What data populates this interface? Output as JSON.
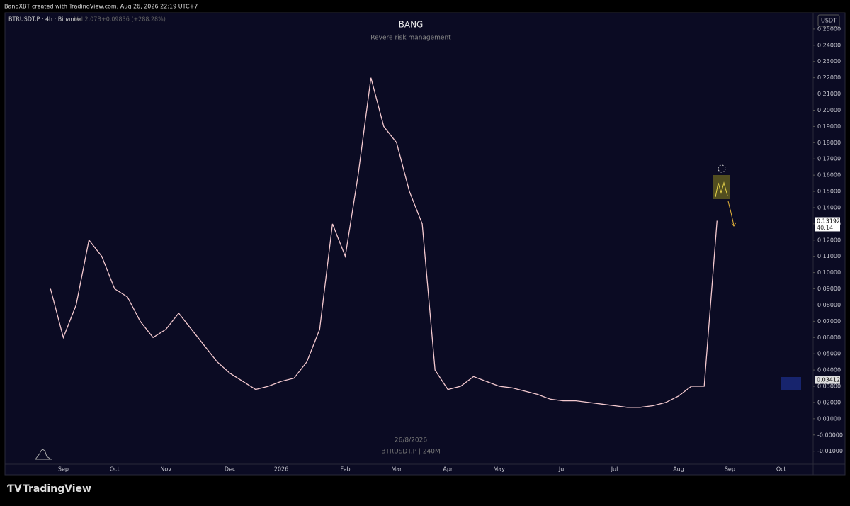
{
  "attribution": "BangXBT created with TradingView.com, Aug 26, 2026 22:19 UTC+7",
  "brand": "TradingView",
  "chart_data": {
    "type": "line",
    "title": "BANG",
    "subtitle": "Revere risk management",
    "symbol": "BTRUSDT.P · 4h · Binance",
    "volume": "Vol 2.07B",
    "change": "+0.09836 (+288.28%)",
    "currency": "USDT",
    "watermark_date": "26/8/2026",
    "watermark_symbol": "BTRUSDT.P | 240M",
    "countdown": "40:14",
    "price_labels": [
      0.13192,
      0.03412
    ],
    "color": "#f4c9cf",
    "categories": [
      null,
      null,
      null,
      null,
      "Sep",
      null,
      null,
      null,
      "Oct",
      null,
      null,
      null,
      "Nov",
      null,
      null,
      null,
      null,
      "Dec",
      null,
      null,
      null,
      "2026",
      null,
      null,
      null,
      null,
      "Feb",
      null,
      null,
      null,
      "Mar",
      null,
      null,
      null,
      "Apr",
      null,
      null,
      null,
      "May",
      null,
      null,
      null,
      null,
      "Jun",
      null,
      null,
      null,
      "Jul",
      null,
      null,
      null,
      null,
      "Aug",
      null,
      null,
      null,
      "Sep",
      null,
      null,
      null,
      "Oct",
      null,
      null
    ],
    "values": [
      null,
      null,
      null,
      0.09,
      0.06,
      0.08,
      0.12,
      0.11,
      0.09,
      0.085,
      0.07,
      0.06,
      0.065,
      0.075,
      0.065,
      0.055,
      0.045,
      0.038,
      0.033,
      0.028,
      0.03,
      0.033,
      0.035,
      0.045,
      0.065,
      0.13,
      0.11,
      0.16,
      0.22,
      0.19,
      0.18,
      0.15,
      0.13,
      0.04,
      0.028,
      0.03,
      0.036,
      0.033,
      0.03,
      0.029,
      0.027,
      0.025,
      0.022,
      0.021,
      0.021,
      0.02,
      0.019,
      0.018,
      0.017,
      0.017,
      0.018,
      0.02,
      0.024,
      0.03,
      0.03,
      0.13192,
      null,
      null,
      null,
      null,
      null,
      null,
      null
    ],
    "ylim": [
      -0.018,
      0.26
    ],
    "yticks": [
      {
        "value": 0.25,
        "label": "0.25000"
      },
      {
        "value": 0.24,
        "label": "0.24000"
      },
      {
        "value": 0.23,
        "label": "0.23000"
      },
      {
        "value": 0.22,
        "label": "0.22000"
      },
      {
        "value": 0.21,
        "label": "0.21000"
      },
      {
        "value": 0.2,
        "label": "0.20000"
      },
      {
        "value": 0.19,
        "label": "0.19000"
      },
      {
        "value": 0.18,
        "label": "0.18000"
      },
      {
        "value": 0.17,
        "label": "0.17000"
      },
      {
        "value": 0.16,
        "label": "0.16000"
      },
      {
        "value": 0.15,
        "label": "0.15000"
      },
      {
        "value": 0.14,
        "label": "0.14000"
      },
      {
        "value": 0.13,
        "label": "0.13000"
      },
      {
        "value": 0.12,
        "label": "0.12000"
      },
      {
        "value": 0.11,
        "label": "0.11000"
      },
      {
        "value": 0.1,
        "label": "0.10000"
      },
      {
        "value": 0.09,
        "label": "0.09000"
      },
      {
        "value": 0.08,
        "label": "0.08000"
      },
      {
        "value": 0.07,
        "label": "0.07000"
      },
      {
        "value": 0.06,
        "label": "0.06000"
      },
      {
        "value": 0.05,
        "label": "0.05000"
      },
      {
        "value": 0.04,
        "label": "0.04000"
      },
      {
        "value": 0.03,
        "label": "0.03000"
      },
      {
        "value": 0.02,
        "label": "0.02000"
      },
      {
        "value": 0.01,
        "label": "0.01000"
      },
      {
        "value": 0,
        "label": "-0.00000"
      },
      {
        "value": -0.01,
        "label": "-0.01000"
      }
    ],
    "grid": false
  }
}
